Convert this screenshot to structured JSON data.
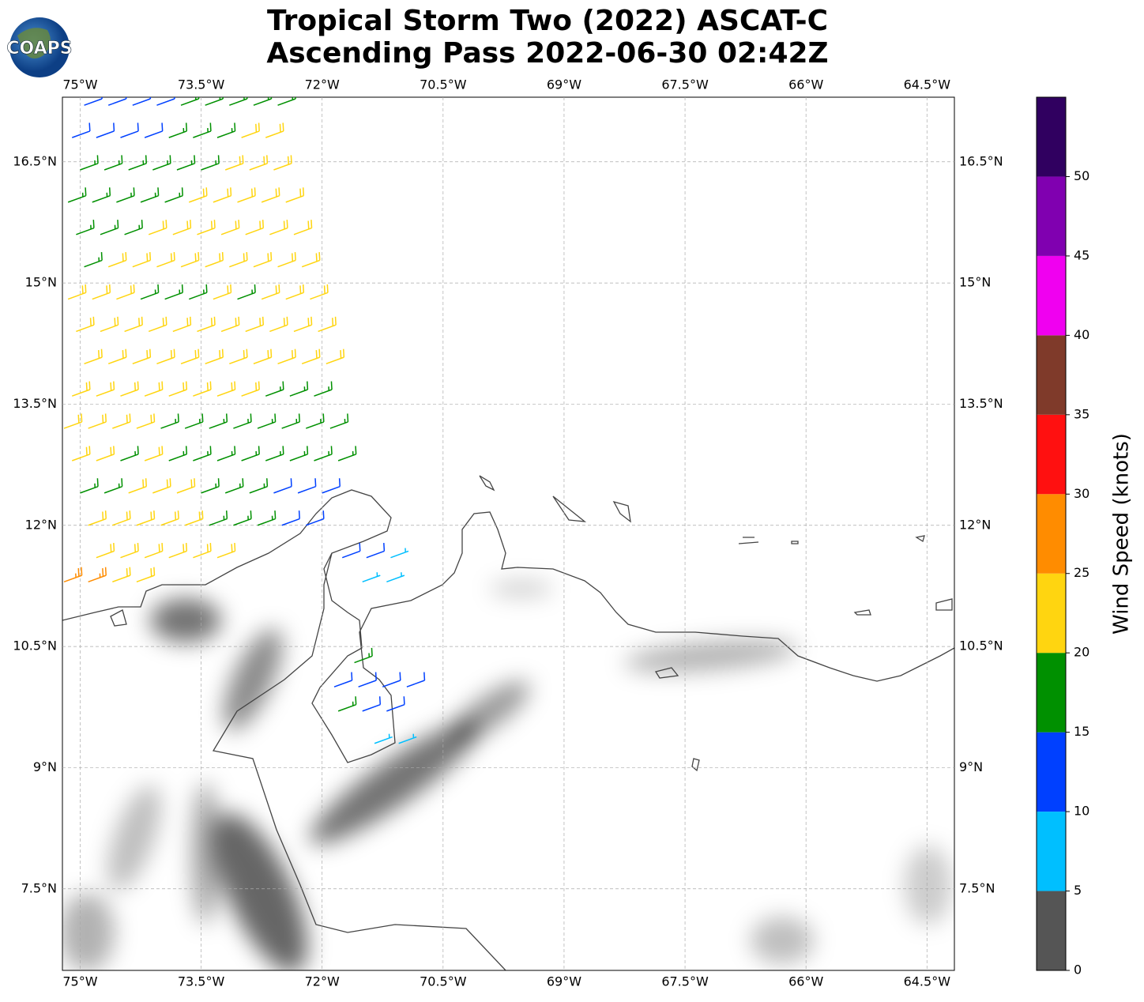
{
  "chart_data": {
    "type": "barb-map",
    "title": "Tropical Storm Two (2022) ASCAT-C",
    "subtitle": "Ascending Pass 2022-06-30 02:42Z",
    "logo": "COAPS",
    "xlim": [
      -75.22,
      -64.16
    ],
    "ylim": [
      6.49,
      17.3
    ],
    "xticks": [
      {
        "value": -75,
        "label": "75°W"
      },
      {
        "value": -73.5,
        "label": "73.5°W"
      },
      {
        "value": -72,
        "label": "72°W"
      },
      {
        "value": -70.5,
        "label": "70.5°W"
      },
      {
        "value": -69,
        "label": "69°W"
      },
      {
        "value": -67.5,
        "label": "67.5°W"
      },
      {
        "value": -66,
        "label": "66°W"
      },
      {
        "value": -64.5,
        "label": "64.5°W"
      }
    ],
    "yticks": [
      {
        "value": 7.5,
        "label": "7.5°N"
      },
      {
        "value": 9,
        "label": "9°N"
      },
      {
        "value": 10.5,
        "label": "10.5°N"
      },
      {
        "value": 12,
        "label": "12°N"
      },
      {
        "value": 13.5,
        "label": "13.5°N"
      },
      {
        "value": 15,
        "label": "15°N"
      },
      {
        "value": 16.5,
        "label": "16.5°N"
      }
    ],
    "grid": true,
    "barb_direction_deg": 70,
    "lon_step": 0.3,
    "barb_rows": [
      {
        "lat": 17.2,
        "lon_start": -74.95,
        "speeds": [
          12,
          12,
          13,
          14,
          16,
          17,
          18,
          18,
          19
        ]
      },
      {
        "lat": 16.8,
        "lon_start": -75.1,
        "speeds": [
          13,
          12,
          13,
          14,
          16,
          18,
          19,
          21,
          22
        ]
      },
      {
        "lat": 16.4,
        "lon_start": -75.0,
        "speeds": [
          17,
          18,
          19,
          17,
          18,
          19,
          21,
          22,
          23
        ]
      },
      {
        "lat": 16.0,
        "lon_start": -75.15,
        "speeds": [
          18,
          19,
          18,
          19,
          19,
          21,
          22,
          22,
          23,
          23
        ]
      },
      {
        "lat": 15.6,
        "lon_start": -75.05,
        "speeds": [
          17,
          18,
          19,
          21,
          22,
          22,
          23,
          23,
          22,
          23
        ]
      },
      {
        "lat": 15.2,
        "lon_start": -74.95,
        "speeds": [
          19,
          21,
          22,
          22,
          23,
          22,
          23,
          23,
          22,
          23
        ]
      },
      {
        "lat": 14.8,
        "lon_start": -75.15,
        "speeds": [
          22,
          22,
          23,
          18,
          19,
          18,
          22,
          19,
          21,
          23,
          22
        ]
      },
      {
        "lat": 14.4,
        "lon_start": -75.05,
        "speeds": [
          22,
          23,
          23,
          22,
          23,
          22,
          22,
          21,
          22,
          23,
          22
        ]
      },
      {
        "lat": 14.0,
        "lon_start": -74.95,
        "speeds": [
          23,
          22,
          23,
          23,
          22,
          23,
          22,
          23,
          22,
          23,
          22
        ]
      },
      {
        "lat": 13.6,
        "lon_start": -75.1,
        "speeds": [
          22,
          23,
          22,
          23,
          22,
          23,
          23,
          22,
          19,
          18,
          18
        ]
      },
      {
        "lat": 13.2,
        "lon_start": -75.2,
        "speeds": [
          22,
          22,
          23,
          22,
          18,
          19,
          18,
          17,
          18,
          18,
          17,
          18
        ]
      },
      {
        "lat": 12.8,
        "lon_start": -75.1,
        "speeds": [
          21,
          22,
          19,
          22,
          18,
          19,
          17,
          18,
          17,
          16,
          18,
          19
        ]
      },
      {
        "lat": 12.4,
        "lon_start": -75.0,
        "speeds": [
          18,
          19,
          22,
          23,
          22,
          18,
          17,
          16,
          14,
          13,
          12
        ]
      },
      {
        "lat": 12.0,
        "lon_start": -74.9,
        "speeds": [
          22,
          23,
          22,
          22,
          23,
          18,
          17,
          16,
          14,
          13
        ]
      },
      {
        "lat": 11.6,
        "lon_start": -74.8,
        "speeds": [
          23,
          22,
          22,
          23,
          22,
          21
        ]
      },
      {
        "lat": 11.3,
        "lon_start": -75.2,
        "speeds": [
          26,
          27,
          22,
          23
        ]
      },
      {
        "lat": 11.6,
        "lon_start": -71.75,
        "speeds": [
          12,
          12,
          8
        ]
      },
      {
        "lat": 11.3,
        "lon_start": -71.5,
        "speeds": [
          8,
          7
        ]
      },
      {
        "lat": 10.3,
        "lon_start": -71.6,
        "speeds": [
          16
        ]
      },
      {
        "lat": 10.0,
        "lon_start": -71.85,
        "speeds": [
          13,
          14,
          12,
          11
        ]
      },
      {
        "lat": 9.7,
        "lon_start": -71.8,
        "speeds": [
          16,
          13,
          12
        ]
      },
      {
        "lat": 9.3,
        "lon_start": -71.35,
        "speeds": [
          8,
          8
        ]
      }
    ],
    "colorbar": {
      "label": "Wind Speed (knots)",
      "bounds": [
        0,
        5,
        10,
        15,
        20,
        25,
        30,
        35,
        40,
        45,
        50,
        55
      ],
      "colors": [
        "#555555",
        "#00bfff",
        "#0040ff",
        "#009000",
        "#ffd510",
        "#ff8c00",
        "#ff1010",
        "#7f3a2a",
        "#f000f0",
        "#8000b0",
        "#300060"
      ],
      "ticks": [
        0,
        5,
        10,
        15,
        20,
        25,
        30,
        35,
        40,
        45,
        50
      ]
    }
  }
}
